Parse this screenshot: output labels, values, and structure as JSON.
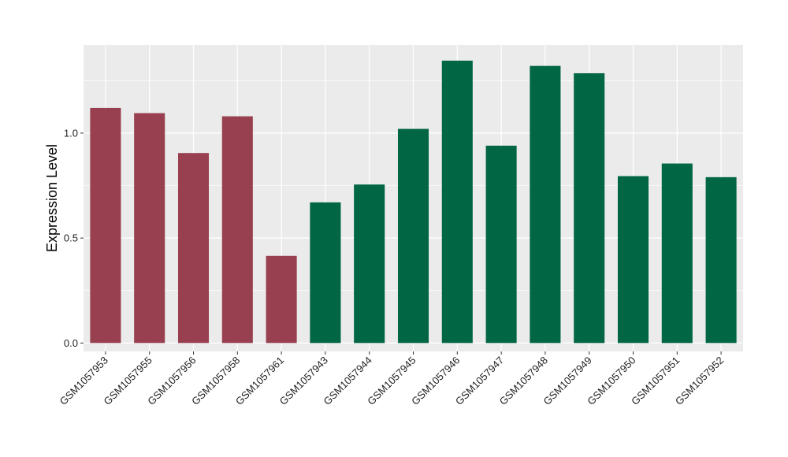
{
  "chart_data": {
    "type": "bar",
    "xlabel": "",
    "ylabel": "Expression Level",
    "ylim": [
      -0.04,
      1.42
    ],
    "yticks": [
      0.0,
      0.5,
      1.0
    ],
    "ytick_labels": [
      "0.0",
      "0.5",
      "1.0"
    ],
    "grid": true,
    "legend": "none",
    "colors": {
      "panel_background": "#EBEBEB",
      "gridline": "#FFFFFF",
      "group_a": "#98404F",
      "group_b": "#006643"
    },
    "categories": [
      "GSM1057953",
      "GSM1057955",
      "GSM1057956",
      "GSM1057958",
      "GSM1057961",
      "GSM1057943",
      "GSM1057944",
      "GSM1057945",
      "GSM1057946",
      "GSM1057947",
      "GSM1057948",
      "GSM1057949",
      "GSM1057950",
      "GSM1057951",
      "GSM1057952"
    ],
    "values": [
      1.12,
      1.095,
      0.905,
      1.08,
      0.415,
      0.67,
      0.755,
      1.02,
      1.345,
      0.94,
      1.32,
      1.285,
      0.795,
      0.855,
      0.79
    ],
    "bar_colors": [
      "#98404F",
      "#98404F",
      "#98404F",
      "#98404F",
      "#98404F",
      "#006643",
      "#006643",
      "#006643",
      "#006643",
      "#006643",
      "#006643",
      "#006643",
      "#006643",
      "#006643",
      "#006643"
    ]
  }
}
